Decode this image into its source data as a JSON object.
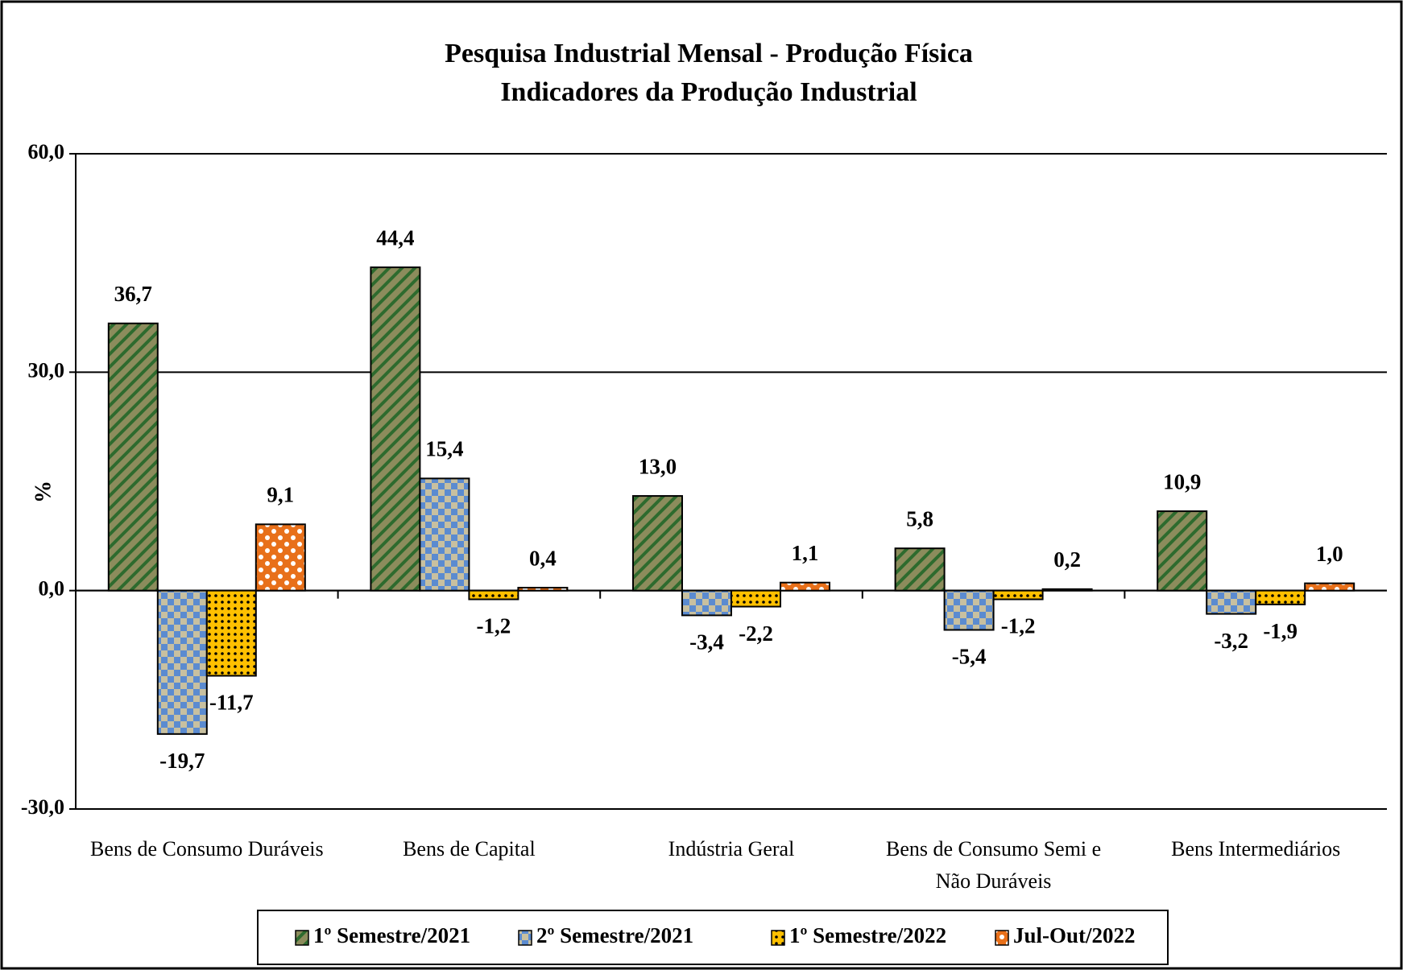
{
  "chart_data": {
    "type": "bar",
    "title": "Pesquisa Industrial Mensal - Produção Física",
    "subtitle": "Indicadores da Produção Industrial",
    "y_label": "%",
    "categories": [
      "Bens de Consumo Duráveis",
      "Bens de Capital",
      "Indústria Geral",
      "Bens de Consumo Semi e Não Duráveis",
      "Bens Intermediários"
    ],
    "series": [
      {
        "name": "1º Semestre/2021",
        "color": "#8c8c5c",
        "values": [
          36.7,
          44.4,
          13.0,
          5.8,
          10.9
        ],
        "value_labels": [
          "36,7",
          "44,4",
          "13,0",
          "5,8",
          "10,9"
        ]
      },
      {
        "name": "2º Semestre/2021",
        "color": "#5b8bd0",
        "values": [
          -19.7,
          15.4,
          -3.4,
          -5.4,
          -3.2
        ],
        "value_labels": [
          "-19,7",
          "15,4",
          "-3,4",
          "-5,4",
          "-3,2"
        ]
      },
      {
        "name": "1º Semestre/2022",
        "color": "#ffc000",
        "values": [
          -11.7,
          -1.2,
          -2.2,
          -1.2,
          -1.9
        ],
        "value_labels": [
          "-11,7",
          "-1,2",
          "-2,2",
          "-1,2",
          "-1,9"
        ]
      },
      {
        "name": "Jul-Out/2022",
        "color": "#e8701a",
        "values": [
          9.1,
          0.4,
          1.1,
          0.2,
          1.0
        ],
        "value_labels": [
          "9,1",
          "0,4",
          "1,1",
          "0,2",
          "1,0"
        ]
      }
    ],
    "ylim": [
      -30,
      60
    ],
    "yticks": [
      {
        "value": -30,
        "label": "-30,0"
      },
      {
        "value": 0,
        "label": "0,0"
      },
      {
        "value": 30,
        "label": "30,0"
      },
      {
        "value": 60,
        "label": "60,0"
      }
    ],
    "grid": true,
    "legend": "bottom"
  }
}
